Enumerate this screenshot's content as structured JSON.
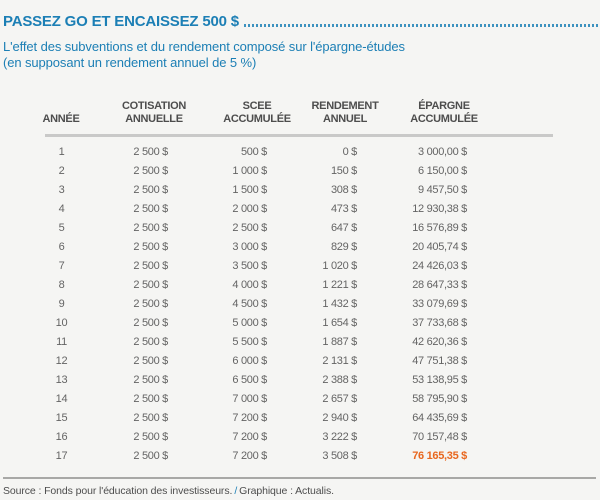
{
  "page": {
    "title": "PASSEZ GO ET ENCAISSEZ 500 $",
    "subtitle_line1": "L'effet des subventions et du rendement composé sur l'épargne-études",
    "subtitle_line2": "(en supposant un rendement annuel de 5 %)"
  },
  "colors": {
    "accent_blue": "#1c7fb5",
    "highlight_orange": "#e8671f",
    "header_text": "#4d4d4d",
    "cell_text": "#646464",
    "background": "#f5f5f3",
    "header_rule": "#c9c9c8",
    "footer_rule": "#a8a8a6"
  },
  "table": {
    "columns": [
      {
        "label": "ANNÉE"
      },
      {
        "label": "COTISATION\nANNUELLE"
      },
      {
        "label": "SCEE\nACCUMULÉE"
      },
      {
        "label": "RENDEMENT\nANNUEL"
      },
      {
        "label": "ÉPARGNE\nACCUMULÉE"
      }
    ],
    "rows": [
      {
        "annee": "1",
        "cotisation": "2 500 $",
        "scee": "500 $",
        "rendement": "0 $",
        "epargne": "3 000,00 $"
      },
      {
        "annee": "2",
        "cotisation": "2 500 $",
        "scee": "1 000 $",
        "rendement": "150 $",
        "epargne": "6 150,00 $"
      },
      {
        "annee": "3",
        "cotisation": "2 500 $",
        "scee": "1 500 $",
        "rendement": "308 $",
        "epargne": "9 457,50 $"
      },
      {
        "annee": "4",
        "cotisation": "2 500 $",
        "scee": "2 000 $",
        "rendement": "473 $",
        "epargne": "12 930,38 $"
      },
      {
        "annee": "5",
        "cotisation": "2 500 $",
        "scee": "2 500 $",
        "rendement": "647 $",
        "epargne": "16 576,89 $"
      },
      {
        "annee": "6",
        "cotisation": "2 500 $",
        "scee": "3 000 $",
        "rendement": "829 $",
        "epargne": "20 405,74 $"
      },
      {
        "annee": "7",
        "cotisation": "2 500 $",
        "scee": "3 500 $",
        "rendement": "1 020 $",
        "epargne": "24 426,03 $"
      },
      {
        "annee": "8",
        "cotisation": "2 500 $",
        "scee": "4 000 $",
        "rendement": "1 221 $",
        "epargne": "28 647,33 $"
      },
      {
        "annee": "9",
        "cotisation": "2 500 $",
        "scee": "4 500 $",
        "rendement": "1 432 $",
        "epargne": "33 079,69 $"
      },
      {
        "annee": "10",
        "cotisation": "2 500 $",
        "scee": "5 000 $",
        "rendement": "1 654 $",
        "epargne": "37 733,68 $"
      },
      {
        "annee": "11",
        "cotisation": "2 500 $",
        "scee": "5 500 $",
        "rendement": "1 887 $",
        "epargne": "42 620,36 $"
      },
      {
        "annee": "12",
        "cotisation": "2 500 $",
        "scee": "6 000 $",
        "rendement": "2 131 $",
        "epargne": "47 751,38 $"
      },
      {
        "annee": "13",
        "cotisation": "2 500 $",
        "scee": "6 500 $",
        "rendement": "2 388 $",
        "epargne": "53 138,95 $"
      },
      {
        "annee": "14",
        "cotisation": "2 500 $",
        "scee": "7 000 $",
        "rendement": "2 657 $",
        "epargne": "58 795,90 $"
      },
      {
        "annee": "15",
        "cotisation": "2 500 $",
        "scee": "7 200 $",
        "rendement": "2 940 $",
        "epargne": "64 435,69 $"
      },
      {
        "annee": "16",
        "cotisation": "2 500 $",
        "scee": "7 200 $",
        "rendement": "3 222 $",
        "epargne": "70 157,48 $"
      },
      {
        "annee": "17",
        "cotisation": "2 500 $",
        "scee": "7 200 $",
        "rendement": "3 508 $",
        "epargne": "76 165,35 $",
        "epargne_highlight": true
      }
    ]
  },
  "footer": {
    "source": "Source : Fonds pour l'éducation des investisseurs.",
    "separator": "/",
    "credit": "Graphique : Actualis."
  },
  "chart_data": {
    "type": "table",
    "title": "PASSEZ GO ET ENCAISSEZ 500 $",
    "subtitle": "L'effet des subventions et du rendement composé sur l'épargne-études (en supposant un rendement annuel de 5 %)",
    "columns": [
      "Année",
      "Cotisation annuelle ($)",
      "SCEE accumulée ($)",
      "Rendement annuel ($)",
      "Épargne accumulée ($)"
    ],
    "rows": [
      [
        1,
        2500,
        500,
        0,
        3000.0
      ],
      [
        2,
        2500,
        1000,
        150,
        6150.0
      ],
      [
        3,
        2500,
        1500,
        308,
        9457.5
      ],
      [
        4,
        2500,
        2000,
        473,
        12930.38
      ],
      [
        5,
        2500,
        2500,
        647,
        16576.89
      ],
      [
        6,
        2500,
        3000,
        829,
        20405.74
      ],
      [
        7,
        2500,
        3500,
        1020,
        24426.03
      ],
      [
        8,
        2500,
        4000,
        1221,
        28647.33
      ],
      [
        9,
        2500,
        4500,
        1432,
        33079.69
      ],
      [
        10,
        2500,
        5000,
        1654,
        37733.68
      ],
      [
        11,
        2500,
        5500,
        1887,
        42620.36
      ],
      [
        12,
        2500,
        6000,
        2131,
        47751.38
      ],
      [
        13,
        2500,
        6500,
        2388,
        53138.95
      ],
      [
        14,
        2500,
        7000,
        2657,
        58795.9
      ],
      [
        15,
        2500,
        7200,
        2940,
        64435.69
      ],
      [
        16,
        2500,
        7200,
        3222,
        70157.48
      ],
      [
        17,
        2500,
        7200,
        3508,
        76165.35
      ]
    ],
    "highlight": {
      "row": 17,
      "column": "Épargne accumulée ($)",
      "value": 76165.35,
      "color": "#e8671f"
    }
  }
}
